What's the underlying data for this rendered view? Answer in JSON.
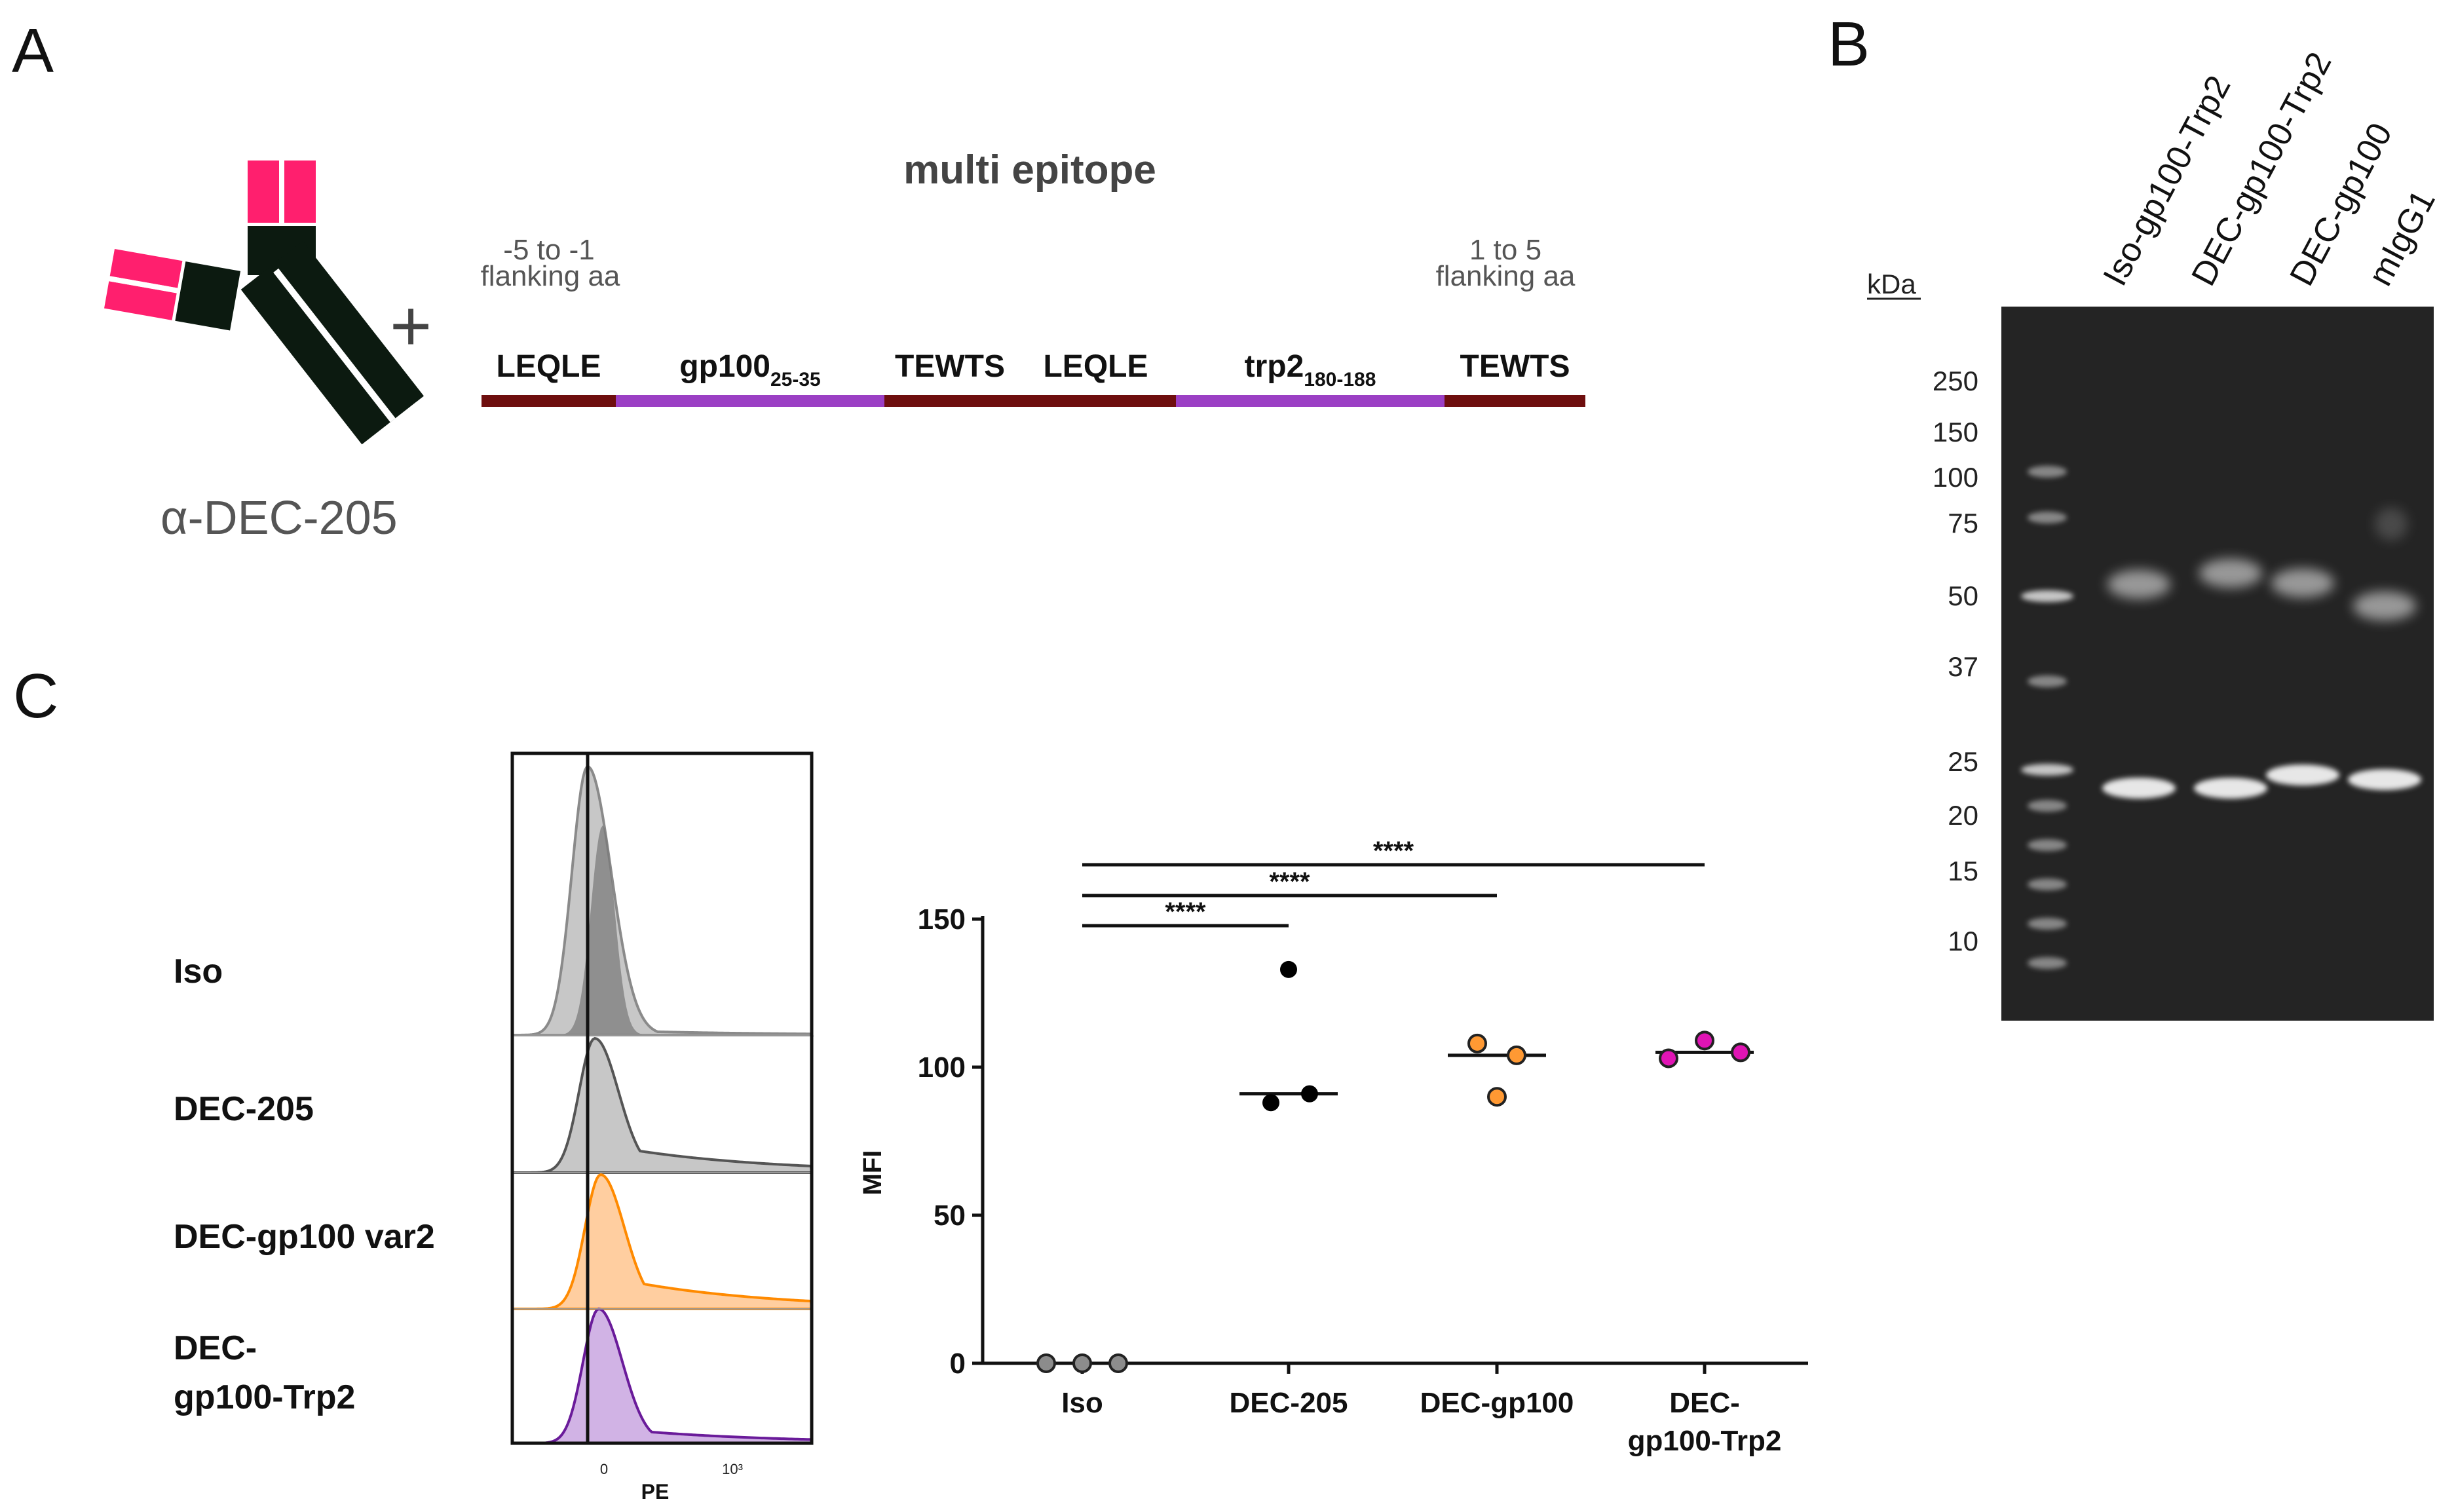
{
  "panels": {
    "a": "A",
    "b": "B",
    "c": "C"
  },
  "panel_a": {
    "antibody_label": "α-DEC-205",
    "plus": "+",
    "construct_title": "multi epitope",
    "flank_left_line1": "-5 to -1",
    "flank_left_line2": "flanking aa",
    "flank_right_line1": "1 to 5",
    "flank_right_line2": "flanking aa",
    "segments": [
      {
        "label": "LEQLE",
        "sub": "",
        "kind": "flank"
      },
      {
        "label": "gp100",
        "sub": "25-35",
        "kind": "epitope"
      },
      {
        "label": "TEWTS",
        "sub": "",
        "kind": "flank"
      },
      {
        "label": "LEQLE",
        "sub": "",
        "kind": "flank"
      },
      {
        "label": "trp2",
        "sub": "180-188",
        "kind": "epitope"
      },
      {
        "label": "TEWTS",
        "sub": "",
        "kind": "flank"
      }
    ],
    "colors": {
      "heavy": "#ff1f6e",
      "dark": "#0c1a10",
      "flank": "#6e0e0e",
      "epitope": "#9b3fc4"
    }
  },
  "panel_b": {
    "unit": "kDa",
    "lanes": [
      "Iso-gp100-Trp2",
      "DEC-gp100-Trp2",
      "DEC-gp100",
      "mIgG1"
    ],
    "markers": [
      250,
      150,
      100,
      75,
      50,
      37,
      25,
      20,
      15,
      10
    ]
  },
  "panel_c": {
    "histogram": {
      "rows": [
        "Iso",
        "DEC-205",
        "DEC-gp100 var2",
        "DEC-\ngp100-Trp2"
      ],
      "xlabel": "PE",
      "ticks": [
        "0",
        "10³"
      ],
      "colors": [
        "#7a7a7a",
        "#7a7a7a",
        "#ff8a00",
        "#6a1b9a"
      ]
    },
    "chart_data": {
      "type": "scatter",
      "categories": [
        "Iso",
        "DEC-205",
        "DEC-gp100",
        "DEC-\ngp100-Trp2"
      ],
      "ylabel": "MFI",
      "ylim": [
        0,
        150
      ],
      "yticks": [
        0,
        50,
        100,
        150
      ],
      "series": [
        {
          "name": "Iso",
          "values": [
            0,
            0,
            0
          ],
          "median": 0,
          "color": "#8c8c8c"
        },
        {
          "name": "DEC-205",
          "values": [
            133,
            88,
            91
          ],
          "median": 91,
          "color": "#000000"
        },
        {
          "name": "DEC-gp100",
          "values": [
            108,
            90,
            104
          ],
          "median": 104,
          "color": "#ff9933"
        },
        {
          "name": "DEC-gp100-Trp2",
          "values": [
            103,
            109,
            105
          ],
          "median": 105,
          "color": "#e014b4"
        }
      ],
      "significance": [
        {
          "from": 0,
          "to": 1,
          "label": "****"
        },
        {
          "from": 0,
          "to": 2,
          "label": "****"
        },
        {
          "from": 0,
          "to": 3,
          "label": "****"
        }
      ]
    }
  }
}
